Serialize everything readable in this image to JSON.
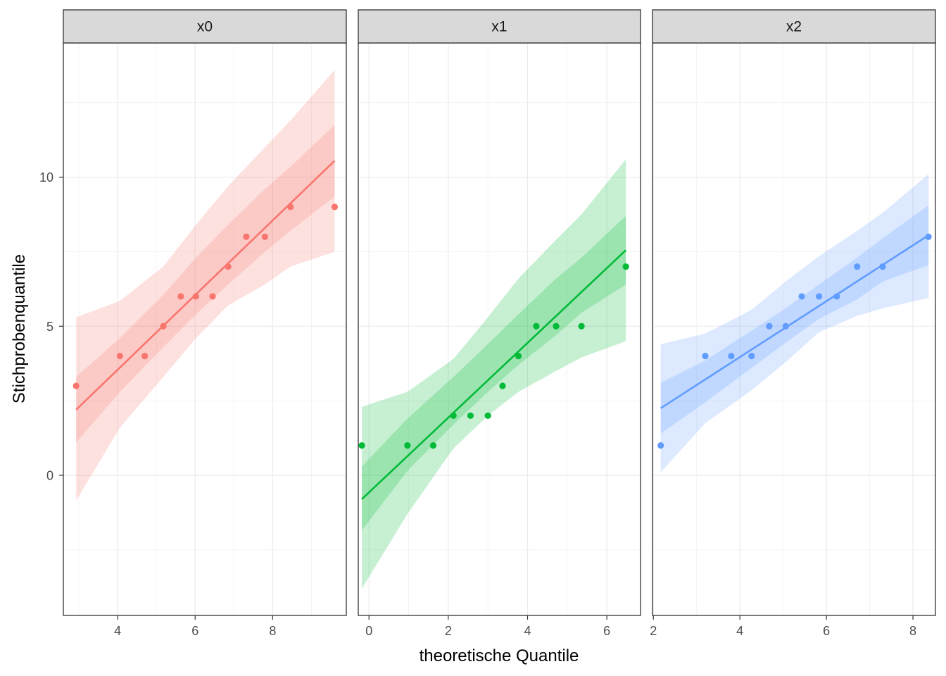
{
  "chart_data": {
    "type": "scatter",
    "title": "",
    "xlabel": "theoretische Quantile",
    "ylabel": "Stichprobenquantile",
    "ylim": [
      -4.7,
      14.5
    ],
    "y_ticks": [
      0,
      5,
      10
    ],
    "y_tick_labels": [
      "0",
      "5",
      "10"
    ],
    "panels": [
      {
        "name": "x0",
        "color": "#F8766D",
        "xlim": [
          2.6,
          9.9
        ],
        "x_ticks": [
          4,
          6,
          8
        ],
        "x_tick_labels": [
          "4",
          "6",
          "8"
        ],
        "points": [
          [
            2.93,
            3
          ],
          [
            4.06,
            4
          ],
          [
            4.7,
            4
          ],
          [
            5.18,
            5
          ],
          [
            5.63,
            6
          ],
          [
            6.02,
            6
          ],
          [
            6.45,
            6
          ],
          [
            6.85,
            7
          ],
          [
            7.32,
            8
          ],
          [
            7.8,
            8
          ],
          [
            8.46,
            9
          ],
          [
            9.6,
            9
          ]
        ],
        "fit_x": [
          2.93,
          9.6
        ],
        "fit_y": [
          2.2,
          10.55
        ],
        "band_x": [
          2.93,
          4.06,
          5.18,
          6.02,
          6.85,
          7.8,
          8.46,
          9.6
        ],
        "band_outer_upper": [
          5.3,
          5.85,
          7.0,
          8.4,
          9.7,
          11.0,
          11.9,
          13.6
        ],
        "band_outer_lower": [
          -0.85,
          1.6,
          3.3,
          4.6,
          5.7,
          6.4,
          7.0,
          7.5
        ],
        "band_inner_upper": [
          3.3,
          4.6,
          6.05,
          7.3,
          8.4,
          9.6,
          10.35,
          11.75
        ],
        "band_inner_lower": [
          1.1,
          2.8,
          4.3,
          5.4,
          6.4,
          7.5,
          8.2,
          9.35
        ]
      },
      {
        "name": "x1",
        "color": "#00BA38",
        "xlim": [
          -0.27,
          6.85
        ],
        "x_ticks": [
          0,
          2,
          4,
          6
        ],
        "x_tick_labels": [
          "0",
          "2",
          "4",
          "6"
        ],
        "points": [
          [
            -0.18,
            1
          ],
          [
            0.97,
            1
          ],
          [
            1.62,
            1
          ],
          [
            2.13,
            2
          ],
          [
            2.56,
            2
          ],
          [
            3.0,
            2
          ],
          [
            3.37,
            3
          ],
          [
            3.77,
            4
          ],
          [
            4.22,
            5
          ],
          [
            4.72,
            5
          ],
          [
            5.36,
            5
          ],
          [
            6.48,
            7
          ]
        ],
        "fit_x": [
          -0.18,
          6.48
        ],
        "fit_y": [
          -0.8,
          7.55
        ],
        "band_x": [
          -0.18,
          0.97,
          2.13,
          3.0,
          3.77,
          4.72,
          5.36,
          6.48
        ],
        "band_outer_upper": [
          2.3,
          2.8,
          3.9,
          5.3,
          6.6,
          7.9,
          8.75,
          10.6
        ],
        "band_outer_lower": [
          -3.8,
          -1.3,
          0.9,
          2.0,
          2.8,
          3.5,
          3.95,
          4.5
        ],
        "band_inner_upper": [
          0.3,
          1.9,
          3.3,
          4.4,
          5.4,
          6.6,
          7.3,
          8.7
        ],
        "band_inner_lower": [
          -1.85,
          0.15,
          1.7,
          2.8,
          3.7,
          4.7,
          5.45,
          6.4
        ]
      },
      {
        "name": "x2",
        "color": "#619CFF",
        "xlim": [
          1.98,
          8.52
        ],
        "x_ticks": [
          2,
          4,
          6,
          8
        ],
        "x_tick_labels": [
          "2",
          "4",
          "6",
          "8"
        ],
        "points": [
          [
            2.17,
            1
          ],
          [
            3.2,
            4
          ],
          [
            3.8,
            4
          ],
          [
            4.27,
            4
          ],
          [
            4.68,
            5
          ],
          [
            5.06,
            5
          ],
          [
            5.43,
            6
          ],
          [
            5.83,
            6
          ],
          [
            6.24,
            6
          ],
          [
            6.71,
            7
          ],
          [
            7.3,
            7
          ],
          [
            8.36,
            8
          ]
        ],
        "fit_x": [
          2.17,
          8.36
        ],
        "fit_y": [
          2.25,
          8.05
        ],
        "band_x": [
          2.17,
          3.2,
          4.27,
          5.06,
          5.83,
          6.71,
          7.3,
          8.36
        ],
        "band_outer_upper": [
          4.4,
          4.75,
          5.55,
          6.5,
          7.35,
          8.2,
          8.8,
          10.1
        ],
        "band_outer_lower": [
          0.1,
          1.75,
          2.85,
          3.8,
          4.8,
          5.35,
          5.6,
          5.95
        ],
        "band_inner_upper": [
          3.1,
          3.85,
          4.85,
          5.6,
          6.4,
          7.3,
          7.95,
          9.05
        ],
        "band_inner_lower": [
          1.4,
          2.45,
          3.6,
          4.45,
          5.25,
          5.9,
          6.5,
          7.05
        ]
      }
    ]
  }
}
